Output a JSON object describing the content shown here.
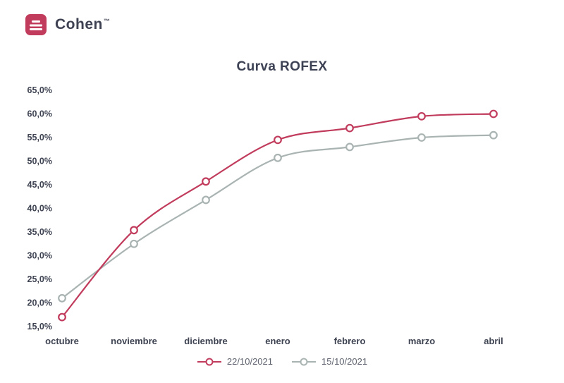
{
  "brand": {
    "name": "Cohen",
    "mark": "™",
    "accent_color": "#c13b5c"
  },
  "chart_data": {
    "type": "line",
    "title": "Curva ROFEX",
    "categories": [
      "octubre",
      "noviembre",
      "diciembre",
      "enero",
      "febrero",
      "marzo",
      "abril"
    ],
    "series": [
      {
        "name": "22/10/2021",
        "color": "#c13b5c",
        "values": [
          17.0,
          35.4,
          45.7,
          54.5,
          57.0,
          59.5,
          60.0
        ]
      },
      {
        "name": "15/10/2021",
        "color": "#a9b4b2",
        "values": [
          21.0,
          32.5,
          41.8,
          50.7,
          53.0,
          55.0,
          55.5
        ]
      }
    ],
    "ylim": [
      15,
      65
    ],
    "ytick_step": 5,
    "ytick_labels": [
      "65,0%",
      "60,0%",
      "55,0%",
      "50,0%",
      "45,0%",
      "40,0%",
      "35,0%",
      "30,0%",
      "25,0%",
      "20,0%",
      "15,0%"
    ],
    "grid": false,
    "legend_position": "bottom",
    "marker": "open-circle"
  }
}
